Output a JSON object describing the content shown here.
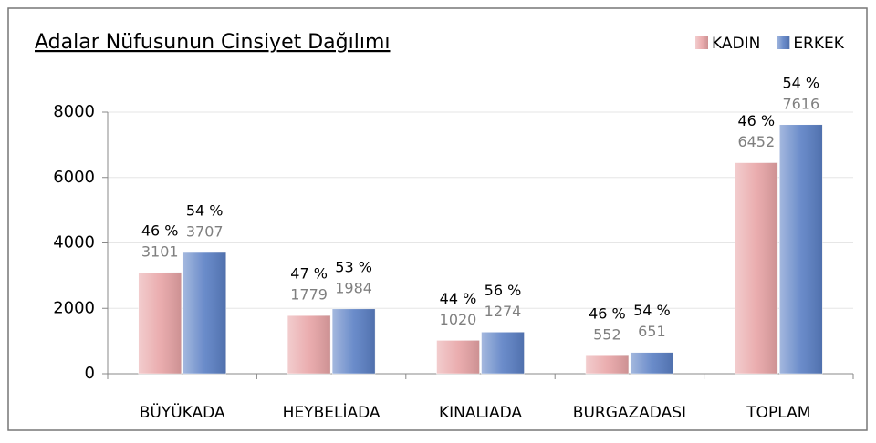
{
  "chart_data": {
    "type": "bar",
    "title": "Adalar Nüfusunun Cinsiyet Dağılımı",
    "categories": [
      "BÜYÜKADA",
      "HEYBELİADA",
      "KINALIADA",
      "BURGAZADASI",
      "TOPLAM"
    ],
    "series": [
      {
        "name": "KADIN",
        "color": "#e8a4a6",
        "values": [
          3101,
          1779,
          1020,
          552,
          6452
        ],
        "percent_labels": [
          "46 %",
          "47 %",
          "44 %",
          "46 %",
          "46 %"
        ]
      },
      {
        "name": "ERKEK",
        "color": "#5a7fc4",
        "values": [
          3707,
          1984,
          1274,
          651,
          7616
        ],
        "percent_labels": [
          "54 %",
          "53 %",
          "56 %",
          "54 %",
          "54 %"
        ]
      }
    ],
    "ylim": [
      0,
      8000
    ],
    "yticks": [
      0,
      2000,
      4000,
      6000,
      8000
    ],
    "grid": true,
    "legend": "top-right"
  }
}
